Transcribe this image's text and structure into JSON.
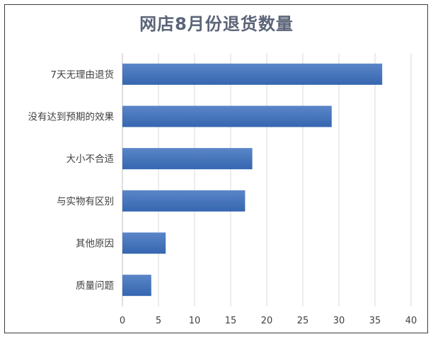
{
  "chart_data": {
    "type": "bar",
    "orientation": "horizontal",
    "title": "网店8月份退货数量",
    "categories": [
      "7天无理由退货",
      "没有达到预期的效果",
      "大小不合适",
      "与实物有区别",
      "其他原因",
      "质量问题"
    ],
    "values": [
      36,
      29,
      18,
      17,
      6,
      4
    ],
    "xlim": [
      0,
      40
    ],
    "xticks": [
      0,
      5,
      10,
      15,
      20,
      25,
      30,
      35,
      40
    ],
    "xlabel": "",
    "ylabel": "",
    "grid": true,
    "legend": "none",
    "bar_color": "#4472c4"
  }
}
